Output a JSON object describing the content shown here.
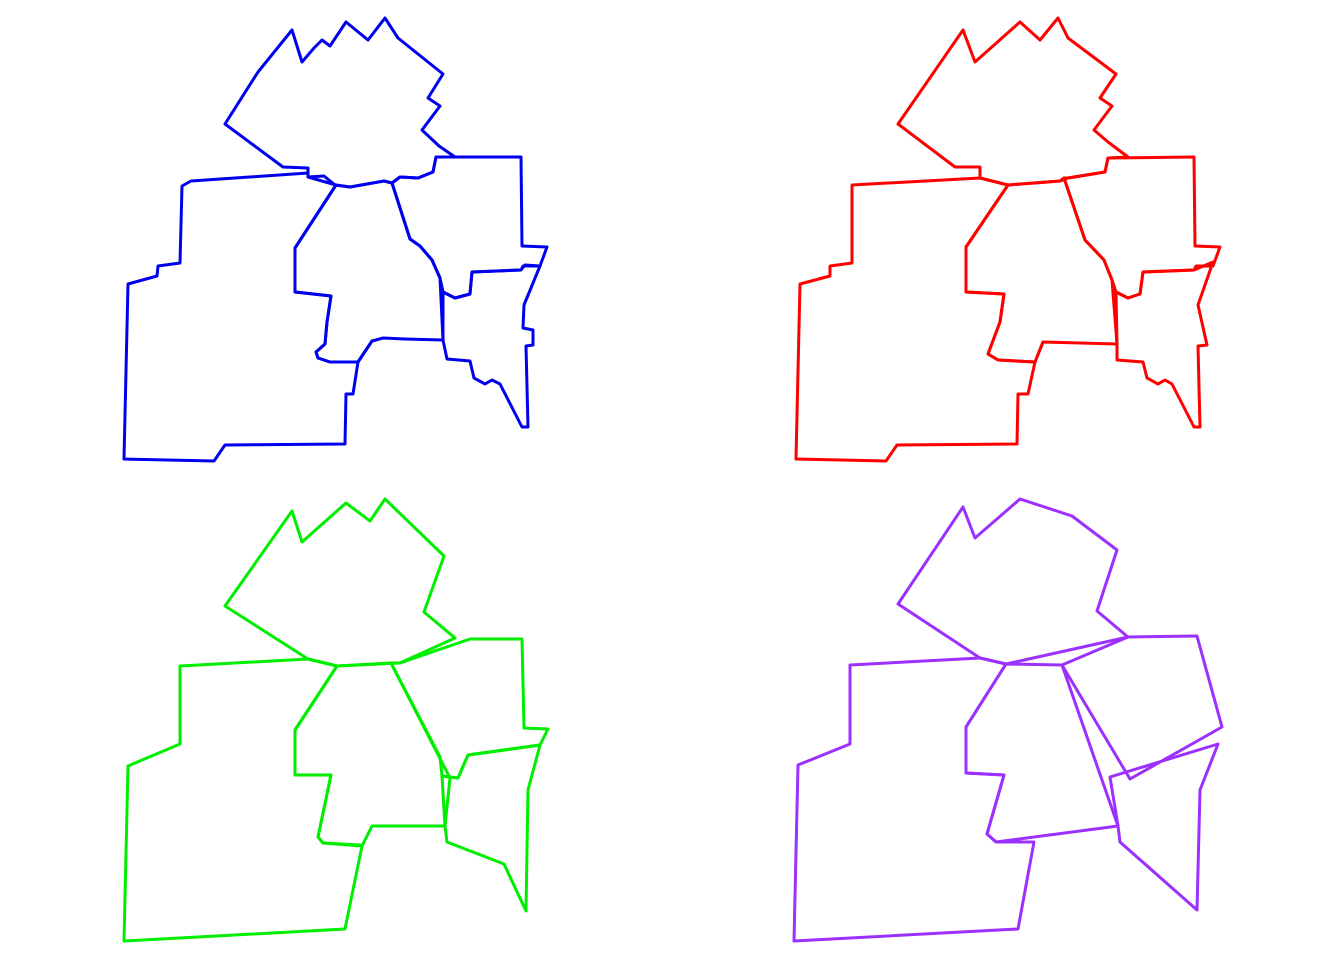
{
  "figure": {
    "panels": [
      {
        "name": "panel-blue",
        "color": "#0000ee",
        "level": "original"
      },
      {
        "name": "panel-red",
        "color": "#ff0000",
        "level": "simplified-1"
      },
      {
        "name": "panel-green",
        "color": "#00ee00",
        "level": "simplified-2"
      },
      {
        "name": "panel-purple",
        "color": "#9b30ff",
        "level": "simplified-3"
      }
    ]
  }
}
